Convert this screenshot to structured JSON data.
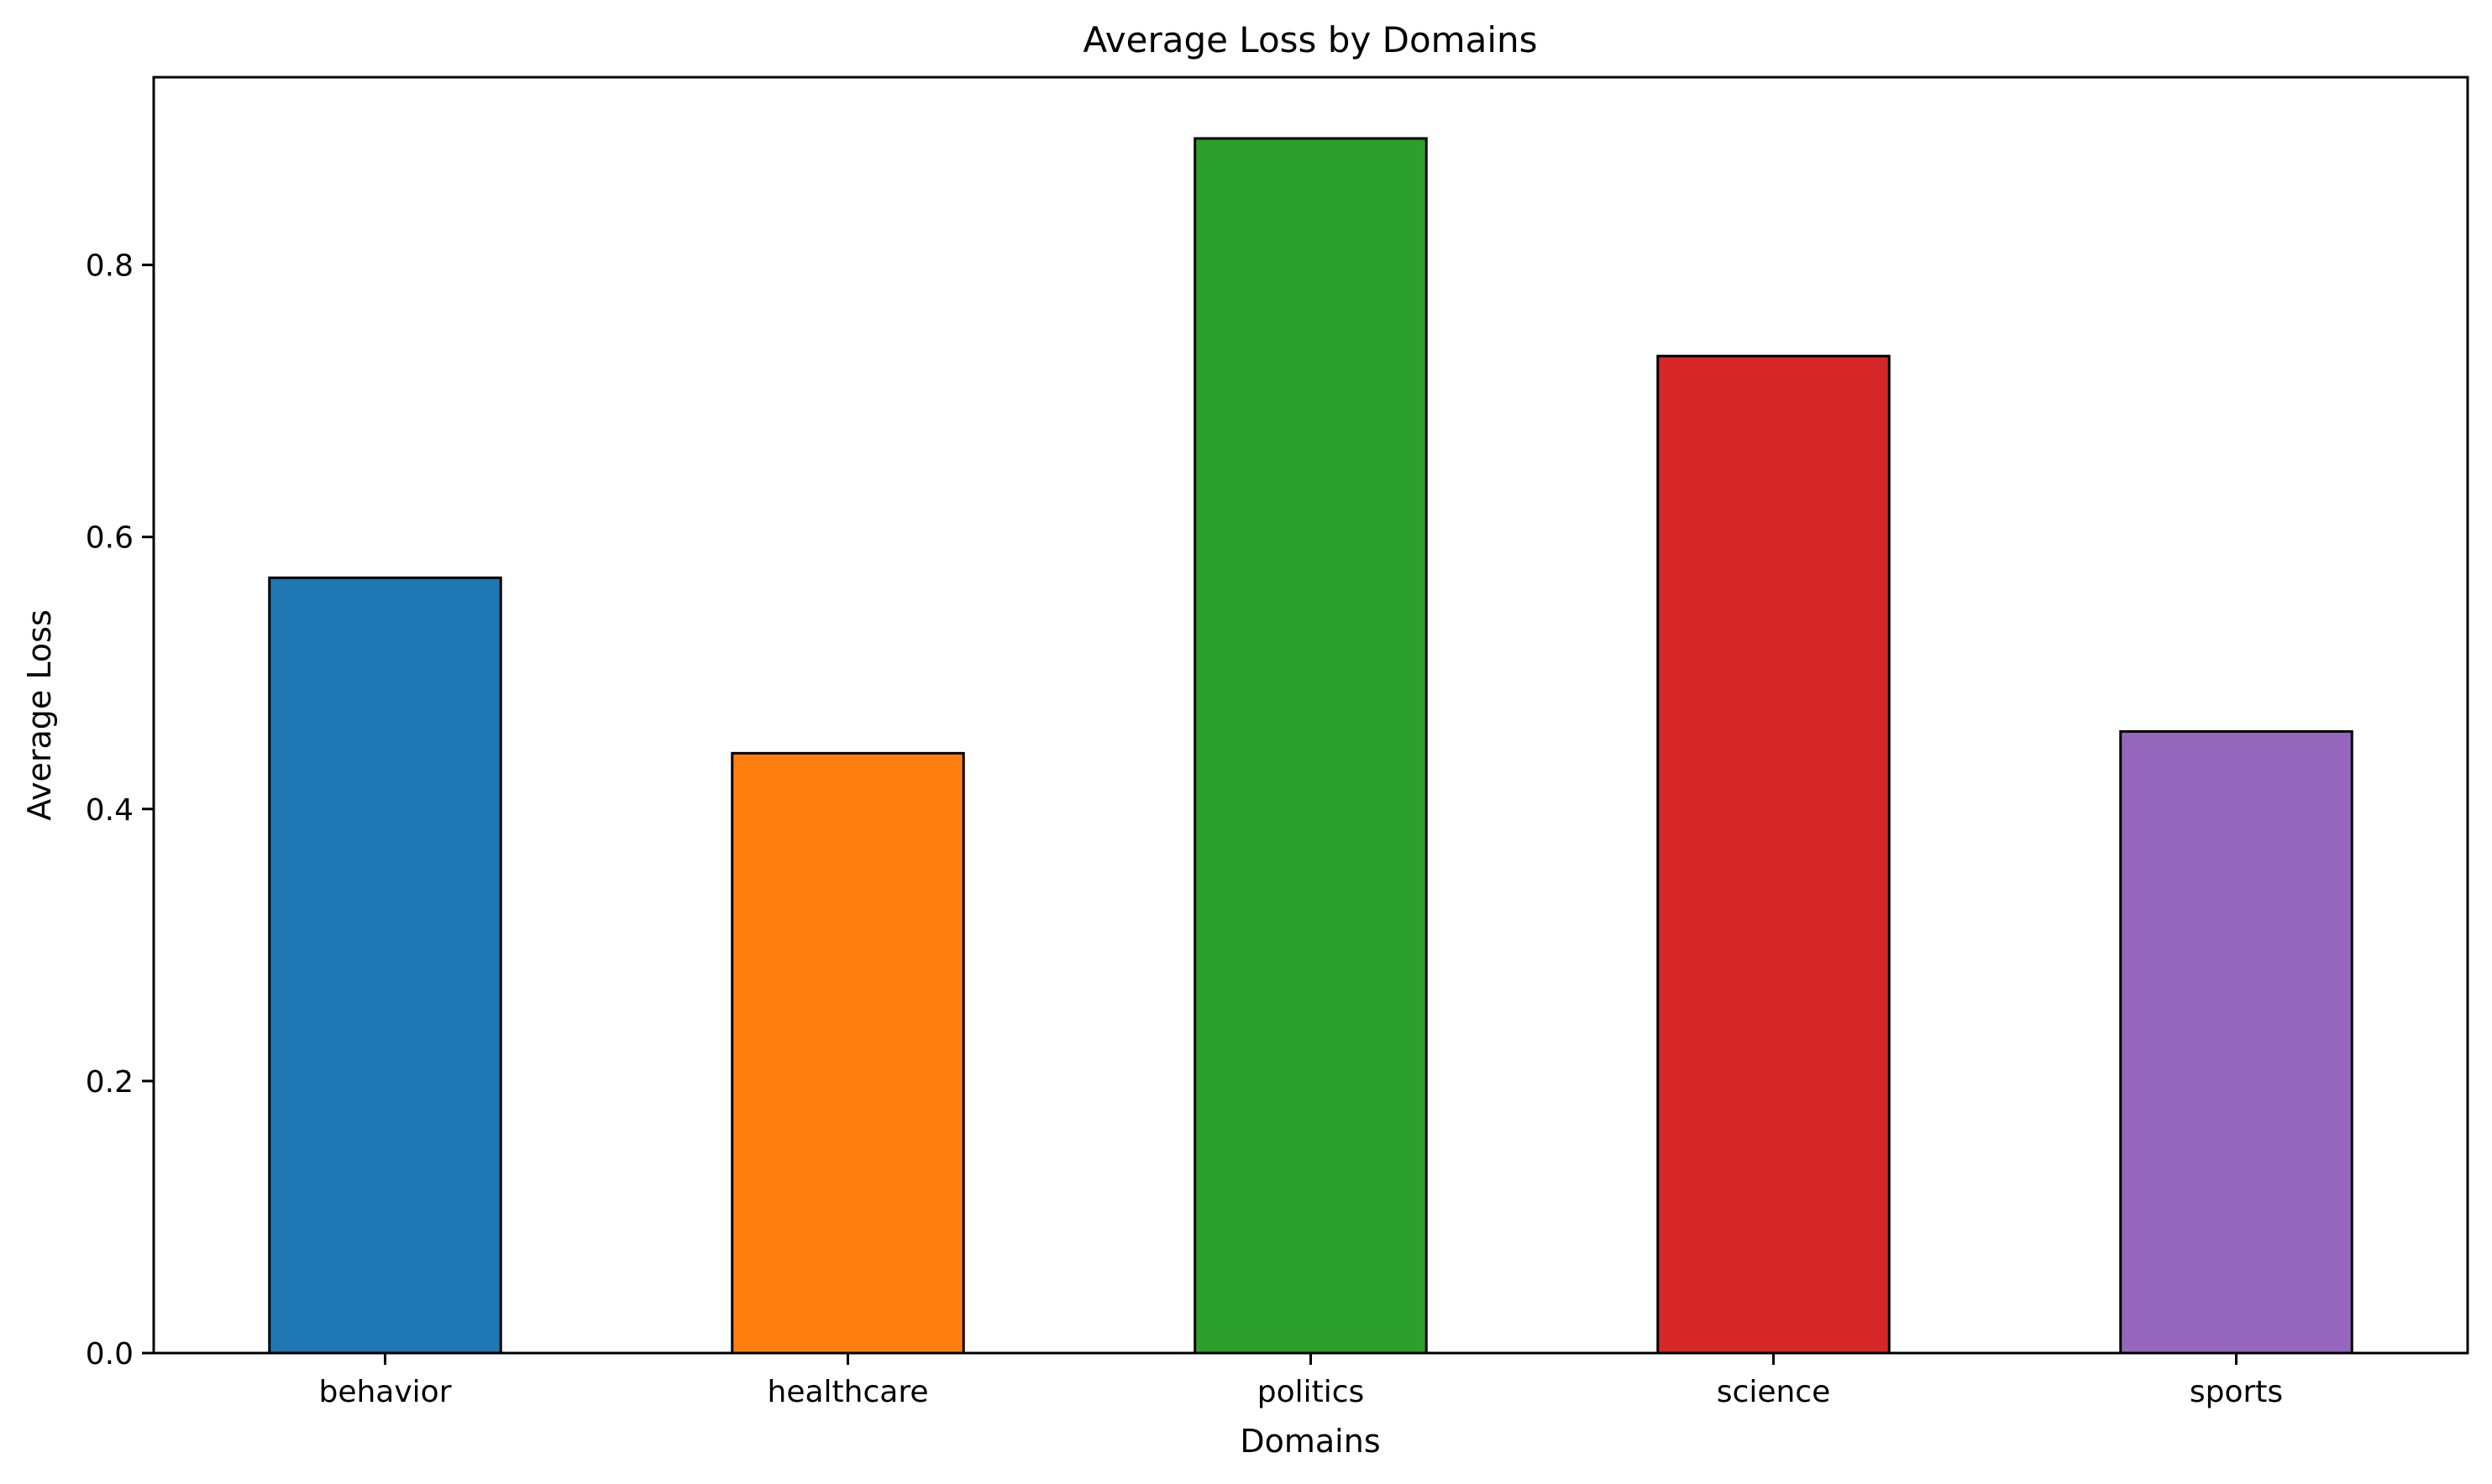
{
  "chart_data": {
    "type": "bar",
    "title": "Average Loss by Domains",
    "xlabel": "Domains",
    "ylabel": "Average Loss",
    "categories": [
      "behavior",
      "healthcare",
      "politics",
      "science",
      "sports"
    ],
    "values": [
      0.57,
      0.441,
      0.893,
      0.733,
      0.457
    ],
    "colors": [
      "#1f77b4",
      "#ff7f0e",
      "#2ca02c",
      "#d62728",
      "#9467bd"
    ],
    "edge_color": "#000000",
    "ylim": [
      0,
      0.938
    ],
    "yticks": [
      0.0,
      0.2,
      0.4,
      0.6,
      0.8
    ],
    "ytick_labels": [
      "0.0",
      "0.2",
      "0.4",
      "0.6",
      "0.8"
    ],
    "grid": false,
    "legend": "none"
  }
}
